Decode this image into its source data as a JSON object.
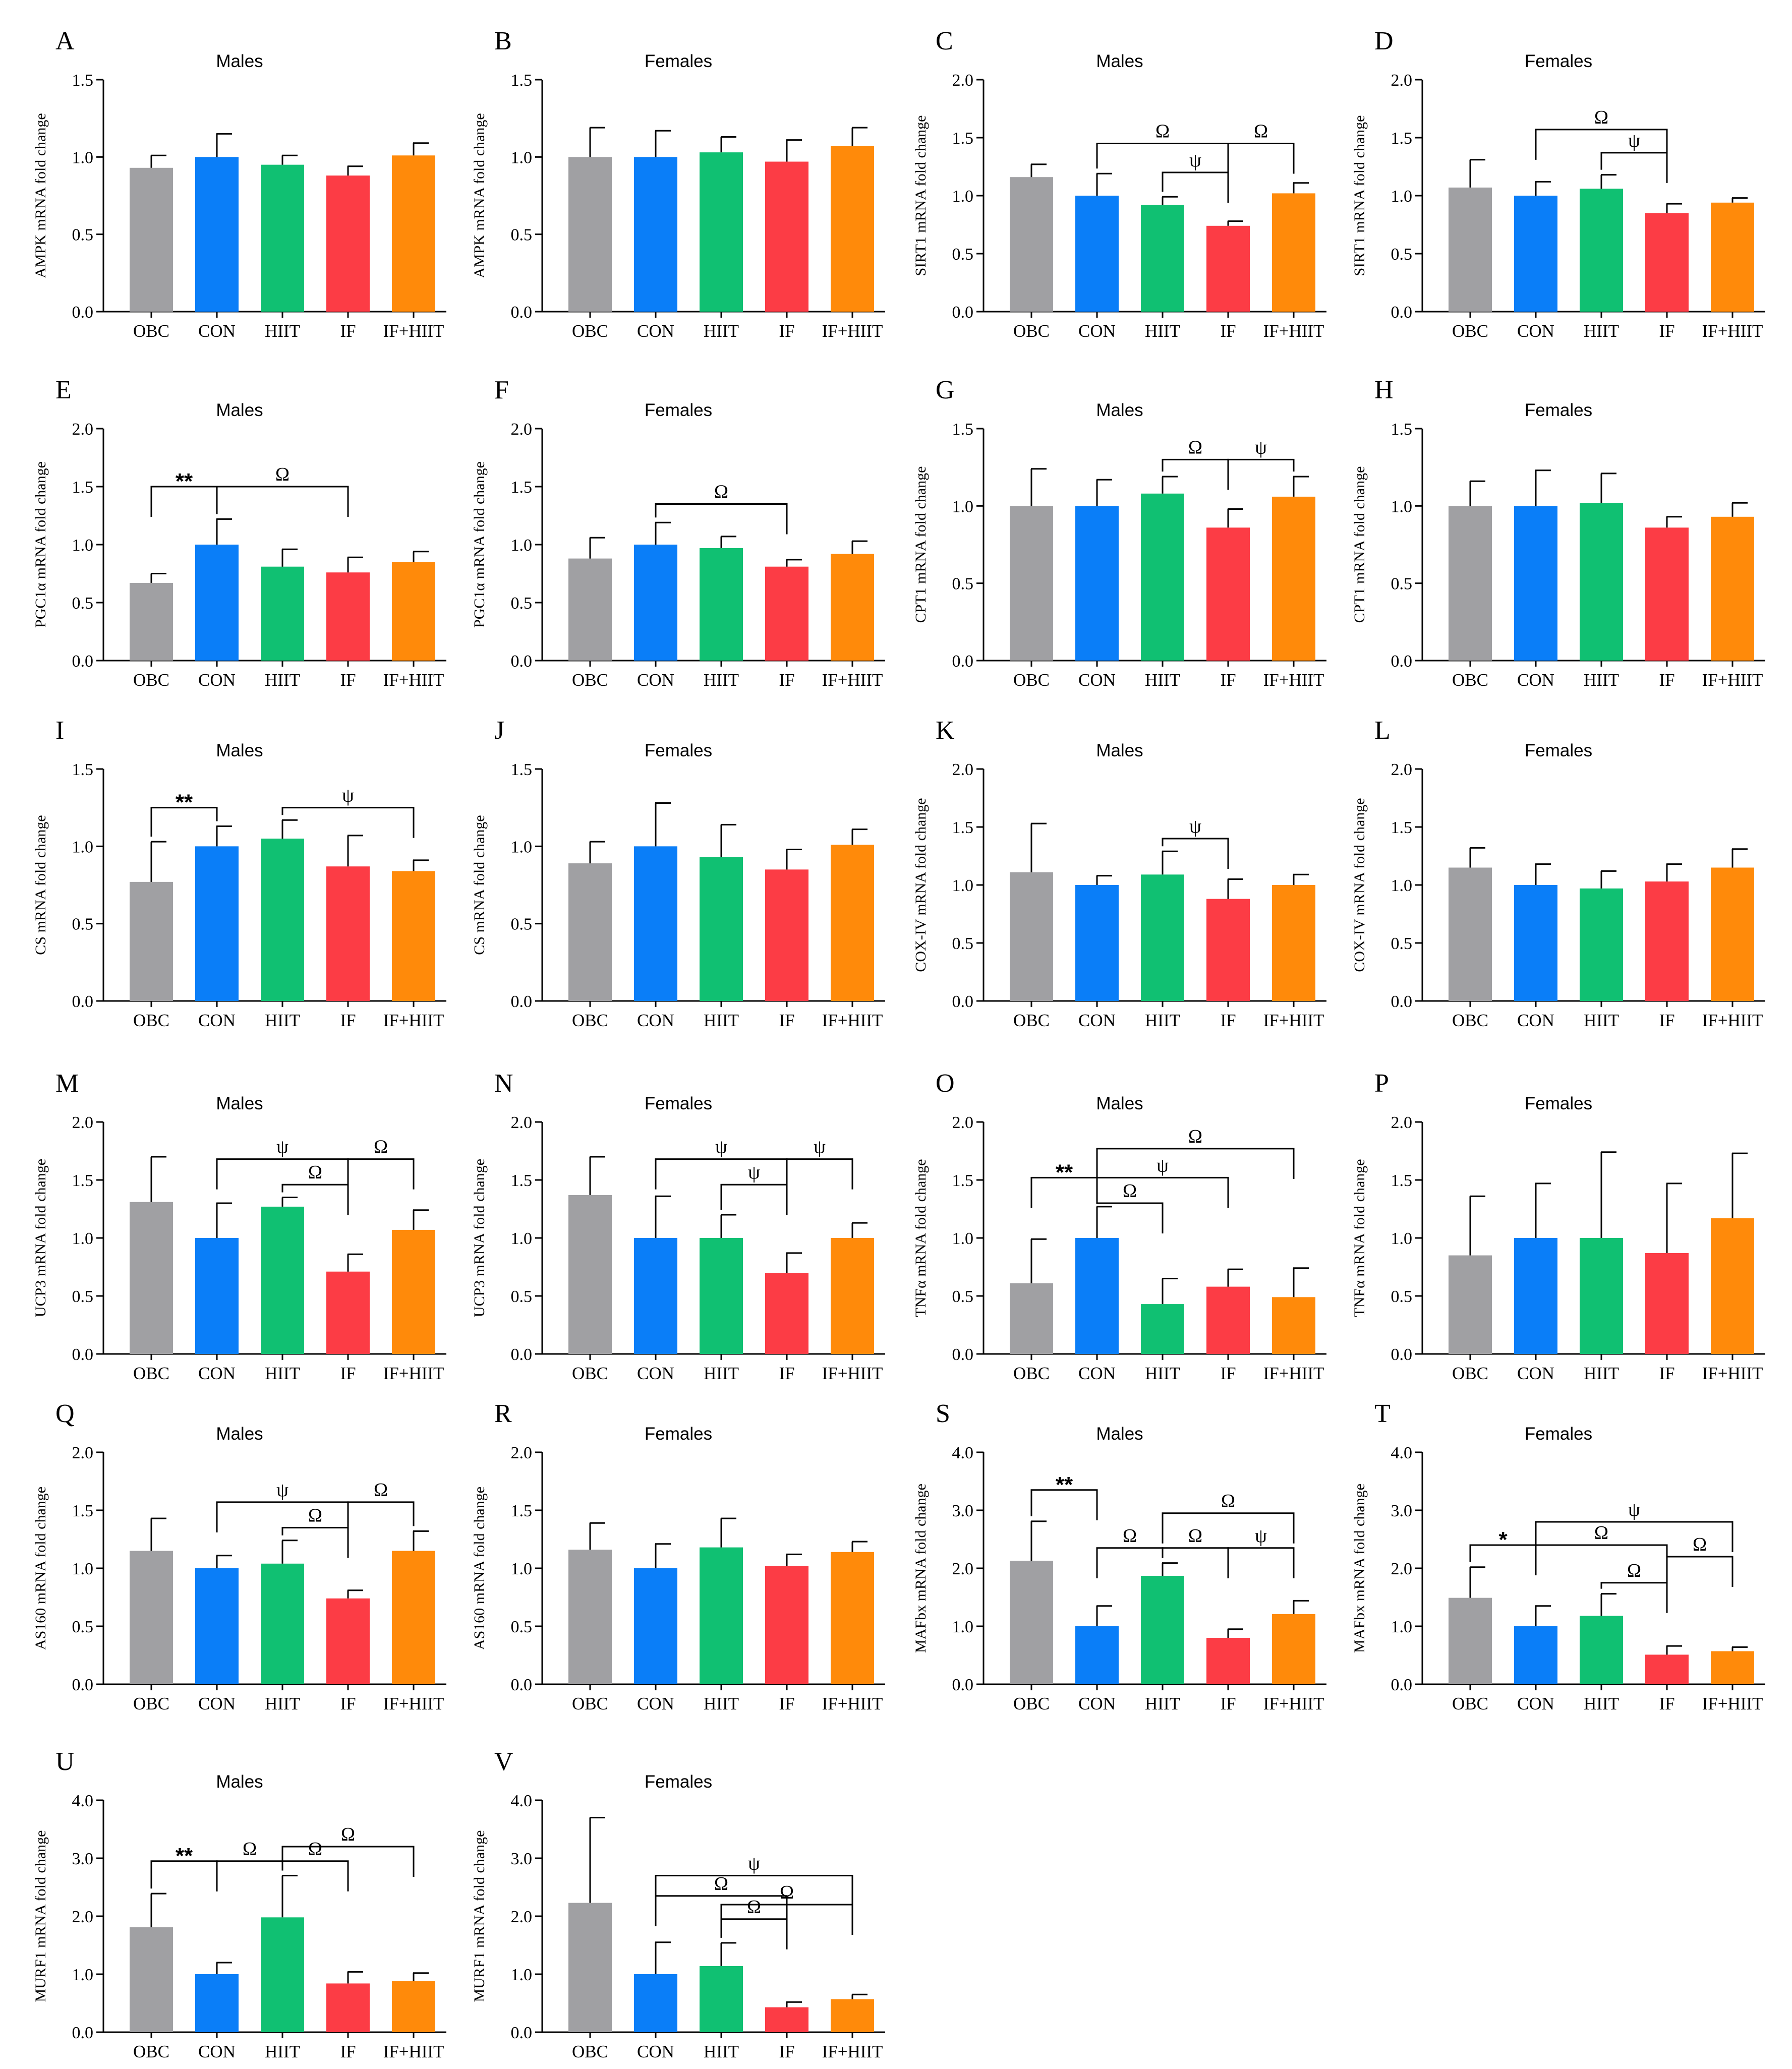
{
  "figure": {
    "categories": [
      "OBC",
      "CON",
      "HIIT",
      "IF",
      "IF+HIIT"
    ],
    "colors": [
      "#a0a0a3",
      "#0a7ef8",
      "#10c072",
      "#fc3c45",
      "#ff8a0a"
    ]
  },
  "chart_data": [
    {
      "type": "bar",
      "letter": "A",
      "title": "Males",
      "ylabel": "AMPK mRNA fold change",
      "ylim": [
        0,
        1.5
      ],
      "yticks": [
        "0.0",
        "0.5",
        "1.0",
        "1.5"
      ],
      "values": [
        0.93,
        1.0,
        0.95,
        0.88,
        1.01
      ],
      "errors": [
        0.08,
        0.15,
        0.06,
        0.06,
        0.08
      ],
      "annotations": []
    },
    {
      "type": "bar",
      "letter": "B",
      "title": "Females",
      "ylabel": "AMPK mRNA fold change",
      "ylim": [
        0,
        1.5
      ],
      "yticks": [
        "0.0",
        "0.5",
        "1.0",
        "1.5"
      ],
      "values": [
        1.0,
        1.0,
        1.03,
        0.97,
        1.07
      ],
      "errors": [
        0.19,
        0.17,
        0.1,
        0.14,
        0.12
      ],
      "annotations": []
    },
    {
      "type": "bar",
      "letter": "C",
      "title": "Males",
      "ylabel": "SIRT1 mRNA fold change",
      "ylim": [
        0,
        2.0
      ],
      "yticks": [
        "0.0",
        "0.5",
        "1.0",
        "1.5",
        "2.0"
      ],
      "values": [
        1.16,
        1.0,
        0.92,
        0.74,
        1.02
      ],
      "errors": [
        0.11,
        0.19,
        0.07,
        0.04,
        0.09
      ],
      "annotations": [
        {
          "from": 1,
          "to": 3,
          "y": 1.45,
          "label": "Ω"
        },
        {
          "from": 3,
          "to": 4,
          "y": 1.45,
          "label": "Ω"
        },
        {
          "from": 2,
          "to": 3,
          "y": 1.2,
          "label": "ψ"
        }
      ]
    },
    {
      "type": "bar",
      "letter": "D",
      "title": "Females",
      "ylabel": "SIRT1 mRNA fold change",
      "ylim": [
        0,
        2.0
      ],
      "yticks": [
        "0.0",
        "0.5",
        "1.0",
        "1.5",
        "2.0"
      ],
      "values": [
        1.07,
        1.0,
        1.06,
        0.85,
        0.94
      ],
      "errors": [
        0.24,
        0.12,
        0.12,
        0.08,
        0.04
      ],
      "annotations": [
        {
          "from": 1,
          "to": 3,
          "y": 1.57,
          "label": "Ω"
        },
        {
          "from": 2,
          "to": 3,
          "y": 1.37,
          "label": "ψ"
        }
      ]
    },
    {
      "type": "bar",
      "letter": "E",
      "title": "Males",
      "ylabel": "PGC1α mRNA fold change",
      "ylim": [
        0,
        2.0
      ],
      "yticks": [
        "0.0",
        "0.5",
        "1.0",
        "1.5",
        "2.0"
      ],
      "values": [
        0.67,
        1.0,
        0.81,
        0.76,
        0.85
      ],
      "errors": [
        0.08,
        0.22,
        0.15,
        0.13,
        0.09
      ],
      "annotations": [
        {
          "from": 0,
          "to": 1,
          "y": 1.5,
          "label": "**"
        },
        {
          "from": 1,
          "to": 3,
          "y": 1.5,
          "label": "Ω"
        }
      ]
    },
    {
      "type": "bar",
      "letter": "F",
      "title": "Females",
      "ylabel": "PGC1α mRNA fold change",
      "ylim": [
        0,
        2.0
      ],
      "yticks": [
        "0.0",
        "0.5",
        "1.0",
        "1.5",
        "2.0"
      ],
      "values": [
        0.88,
        1.0,
        0.97,
        0.81,
        0.92
      ],
      "errors": [
        0.18,
        0.19,
        0.1,
        0.06,
        0.11
      ],
      "annotations": [
        {
          "from": 1,
          "to": 3,
          "y": 1.35,
          "label": "Ω"
        }
      ]
    },
    {
      "type": "bar",
      "letter": "G",
      "title": "Males",
      "ylabel": "CPT1 mRNA fold change",
      "ylim": [
        0,
        1.5
      ],
      "yticks": [
        "0.0",
        "0.5",
        "1.0",
        "1.5"
      ],
      "values": [
        1.0,
        1.0,
        1.08,
        0.86,
        1.06
      ],
      "errors": [
        0.24,
        0.17,
        0.11,
        0.12,
        0.13
      ],
      "annotations": [
        {
          "from": 2,
          "to": 3,
          "y": 1.3,
          "label": "Ω"
        },
        {
          "from": 3,
          "to": 4,
          "y": 1.3,
          "label": "ψ"
        }
      ]
    },
    {
      "type": "bar",
      "letter": "H",
      "title": "Females",
      "ylabel": "CPT1 mRNA fold change",
      "ylim": [
        0,
        1.5
      ],
      "yticks": [
        "0.0",
        "0.5",
        "1.0",
        "1.5"
      ],
      "values": [
        1.0,
        1.0,
        1.02,
        0.86,
        0.93
      ],
      "errors": [
        0.16,
        0.23,
        0.19,
        0.07,
        0.09
      ],
      "annotations": []
    },
    {
      "type": "bar",
      "letter": "I",
      "title": "Males",
      "ylabel": "CS mRNA fold change",
      "ylim": [
        0,
        1.5
      ],
      "yticks": [
        "0.0",
        "0.5",
        "1.0",
        "1.5"
      ],
      "values": [
        0.77,
        1.0,
        1.05,
        0.87,
        0.84
      ],
      "errors": [
        0.26,
        0.13,
        0.12,
        0.2,
        0.07
      ],
      "annotations": [
        {
          "from": 0,
          "to": 1,
          "y": 1.25,
          "label": "**"
        },
        {
          "from": 2,
          "to": 4,
          "y": 1.25,
          "label": "ψ"
        }
      ]
    },
    {
      "type": "bar",
      "letter": "J",
      "title": "Females",
      "ylabel": "CS mRNA fold change",
      "ylim": [
        0,
        1.5
      ],
      "yticks": [
        "0.0",
        "0.5",
        "1.0",
        "1.5"
      ],
      "values": [
        0.89,
        1.0,
        0.93,
        0.85,
        1.01
      ],
      "errors": [
        0.14,
        0.28,
        0.21,
        0.13,
        0.1
      ],
      "annotations": []
    },
    {
      "type": "bar",
      "letter": "K",
      "title": "Males",
      "ylabel": "COX-IV mRNA fold change",
      "ylim": [
        0,
        2.0
      ],
      "yticks": [
        "0.0",
        "0.5",
        "1.0",
        "1.5",
        "2.0"
      ],
      "values": [
        1.11,
        1.0,
        1.09,
        0.88,
        1.0
      ],
      "errors": [
        0.42,
        0.08,
        0.2,
        0.17,
        0.09
      ],
      "annotations": [
        {
          "from": 2,
          "to": 3,
          "y": 1.4,
          "label": "ψ"
        }
      ]
    },
    {
      "type": "bar",
      "letter": "L",
      "title": "Females",
      "ylabel": "COX-IV mRNA fold change",
      "ylim": [
        0,
        2.0
      ],
      "yticks": [
        "0.0",
        "0.5",
        "1.0",
        "1.5",
        "2.0"
      ],
      "values": [
        1.15,
        1.0,
        0.97,
        1.03,
        1.15
      ],
      "errors": [
        0.17,
        0.18,
        0.15,
        0.15,
        0.16
      ],
      "annotations": []
    },
    {
      "type": "bar",
      "letter": "M",
      "title": "Males",
      "ylabel": "UCP3 mRNA fold change",
      "ylim": [
        0,
        2.0
      ],
      "yticks": [
        "0.0",
        "0.5",
        "1.0",
        "1.5",
        "2.0"
      ],
      "values": [
        1.31,
        1.0,
        1.27,
        0.71,
        1.07
      ],
      "errors": [
        0.39,
        0.3,
        0.08,
        0.15,
        0.17
      ],
      "annotations": [
        {
          "from": 1,
          "to": 3,
          "y": 1.68,
          "label": "ψ"
        },
        {
          "from": 3,
          "to": 4,
          "y": 1.68,
          "label": "Ω"
        },
        {
          "from": 2,
          "to": 3,
          "y": 1.46,
          "label": "Ω"
        }
      ]
    },
    {
      "type": "bar",
      "letter": "N",
      "title": "Females",
      "ylabel": "UCP3 mRNA fold change",
      "ylim": [
        0,
        2.0
      ],
      "yticks": [
        "0.0",
        "0.5",
        "1.0",
        "1.5",
        "2.0"
      ],
      "values": [
        1.37,
        1.0,
        1.0,
        0.7,
        1.0
      ],
      "errors": [
        0.33,
        0.36,
        0.2,
        0.17,
        0.13
      ],
      "annotations": [
        {
          "from": 1,
          "to": 3,
          "y": 1.68,
          "label": "ψ"
        },
        {
          "from": 3,
          "to": 4,
          "y": 1.68,
          "label": "ψ"
        },
        {
          "from": 2,
          "to": 3,
          "y": 1.46,
          "label": "ψ"
        }
      ]
    },
    {
      "type": "bar",
      "letter": "O",
      "title": "Males",
      "ylabel": "TNFα mRNA fold change",
      "ylim": [
        0,
        2.0
      ],
      "yticks": [
        "0.0",
        "0.5",
        "1.0",
        "1.5",
        "2.0"
      ],
      "values": [
        0.61,
        1.0,
        0.43,
        0.58,
        0.49
      ],
      "errors": [
        0.38,
        0.27,
        0.22,
        0.15,
        0.25
      ],
      "annotations": [
        {
          "from": 0,
          "to": 1,
          "y": 1.52,
          "label": "**"
        },
        {
          "from": 1,
          "to": 4,
          "y": 1.77,
          "label": "Ω"
        },
        {
          "from": 1,
          "to": 3,
          "y": 1.52,
          "label": "ψ"
        },
        {
          "from": 1,
          "to": 2,
          "y": 1.3,
          "label": "Ω"
        }
      ]
    },
    {
      "type": "bar",
      "letter": "P",
      "title": "Females",
      "ylabel": "TNFα mRNA fold change",
      "ylim": [
        0,
        2.0
      ],
      "yticks": [
        "0.0",
        "0.5",
        "1.0",
        "1.5",
        "2.0"
      ],
      "values": [
        0.85,
        1.0,
        1.0,
        0.87,
        1.17
      ],
      "errors": [
        0.51,
        0.47,
        0.74,
        0.6,
        0.56
      ],
      "annotations": []
    },
    {
      "type": "bar",
      "letter": "Q",
      "title": "Males",
      "ylabel": "AS160 mRNA fold change",
      "ylim": [
        0,
        2.0
      ],
      "yticks": [
        "0.0",
        "0.5",
        "1.0",
        "1.5",
        "2.0"
      ],
      "values": [
        1.15,
        1.0,
        1.04,
        0.74,
        1.15
      ],
      "errors": [
        0.28,
        0.11,
        0.2,
        0.07,
        0.17
      ],
      "annotations": [
        {
          "from": 1,
          "to": 3,
          "y": 1.57,
          "label": "ψ"
        },
        {
          "from": 3,
          "to": 4,
          "y": 1.57,
          "label": "Ω"
        },
        {
          "from": 2,
          "to": 3,
          "y": 1.35,
          "label": "Ω"
        }
      ]
    },
    {
      "type": "bar",
      "letter": "R",
      "title": "Females",
      "ylabel": "AS160 mRNA fold change",
      "ylim": [
        0,
        2.0
      ],
      "yticks": [
        "0.0",
        "0.5",
        "1.0",
        "1.5",
        "2.0"
      ],
      "values": [
        1.16,
        1.0,
        1.18,
        1.02,
        1.14
      ],
      "errors": [
        0.23,
        0.21,
        0.25,
        0.1,
        0.09
      ],
      "annotations": []
    },
    {
      "type": "bar",
      "letter": "S",
      "title": "Males",
      "ylabel": "MAFbx mRNA fold change",
      "ylim": [
        0,
        4.0
      ],
      "yticks": [
        "0.0",
        "1.0",
        "2.0",
        "3.0",
        "4.0"
      ],
      "values": [
        2.13,
        1.0,
        1.87,
        0.8,
        1.21
      ],
      "errors": [
        0.68,
        0.35,
        0.22,
        0.15,
        0.23
      ],
      "annotations": [
        {
          "from": 0,
          "to": 1,
          "y": 3.35,
          "label": "**"
        },
        {
          "from": 2,
          "to": 4,
          "y": 2.95,
          "label": "Ω"
        },
        {
          "from": 1,
          "to": 2,
          "y": 2.35,
          "label": "Ω"
        },
        {
          "from": 2,
          "to": 3,
          "y": 2.35,
          "label": "Ω"
        },
        {
          "from": 3,
          "to": 4,
          "y": 2.35,
          "label": "ψ"
        }
      ]
    },
    {
      "type": "bar",
      "letter": "T",
      "title": "Females",
      "ylabel": "MAFbx mRNA fold change",
      "ylim": [
        0,
        4.0
      ],
      "yticks": [
        "0.0",
        "1.0",
        "2.0",
        "3.0",
        "4.0"
      ],
      "values": [
        1.49,
        1.0,
        1.18,
        0.51,
        0.57
      ],
      "errors": [
        0.53,
        0.35,
        0.38,
        0.15,
        0.07
      ],
      "annotations": [
        {
          "from": 0,
          "to": 1,
          "y": 2.4,
          "label": "*"
        },
        {
          "from": 1,
          "to": 4,
          "y": 2.8,
          "label": "ψ"
        },
        {
          "from": 1,
          "to": 3,
          "y": 2.4,
          "label": "Ω"
        },
        {
          "from": 3,
          "to": 4,
          "y": 2.2,
          "label": "Ω"
        },
        {
          "from": 2,
          "to": 3,
          "y": 1.75,
          "label": "Ω"
        }
      ]
    },
    {
      "type": "bar",
      "letter": "U",
      "title": "Males",
      "ylabel": "MURF1 mRNA fold change",
      "ylim": [
        0,
        4.0
      ],
      "yticks": [
        "0.0",
        "1.0",
        "2.0",
        "3.0",
        "4.0"
      ],
      "values": [
        1.81,
        1.0,
        1.98,
        0.84,
        0.88
      ],
      "errors": [
        0.58,
        0.2,
        0.72,
        0.2,
        0.14
      ],
      "annotations": [
        {
          "from": 0,
          "to": 1,
          "y": 2.95,
          "label": "**"
        },
        {
          "from": 1,
          "to": 2,
          "y": 2.95,
          "label": "Ω"
        },
        {
          "from": 2,
          "to": 4,
          "y": 3.2,
          "label": "Ω"
        },
        {
          "from": 2,
          "to": 3,
          "y": 2.95,
          "label": "Ω"
        }
      ]
    },
    {
      "type": "bar",
      "letter": "V",
      "title": "Females",
      "ylabel": "MURF1 mRNA fold change",
      "ylim": [
        0,
        4.0
      ],
      "yticks": [
        "0.0",
        "1.0",
        "2.0",
        "3.0",
        "4.0"
      ],
      "values": [
        2.23,
        1.0,
        1.14,
        0.43,
        0.57
      ],
      "errors": [
        1.47,
        0.55,
        0.4,
        0.09,
        0.08
      ],
      "annotations": [
        {
          "from": 1,
          "to": 4,
          "y": 2.7,
          "label": "ψ"
        },
        {
          "from": 1,
          "to": 3,
          "y": 2.35,
          "label": "Ω"
        },
        {
          "from": 2,
          "to": 4,
          "y": 2.2,
          "label": "Ω"
        },
        {
          "from": 2,
          "to": 3,
          "y": 1.95,
          "label": "Ω"
        }
      ]
    }
  ]
}
